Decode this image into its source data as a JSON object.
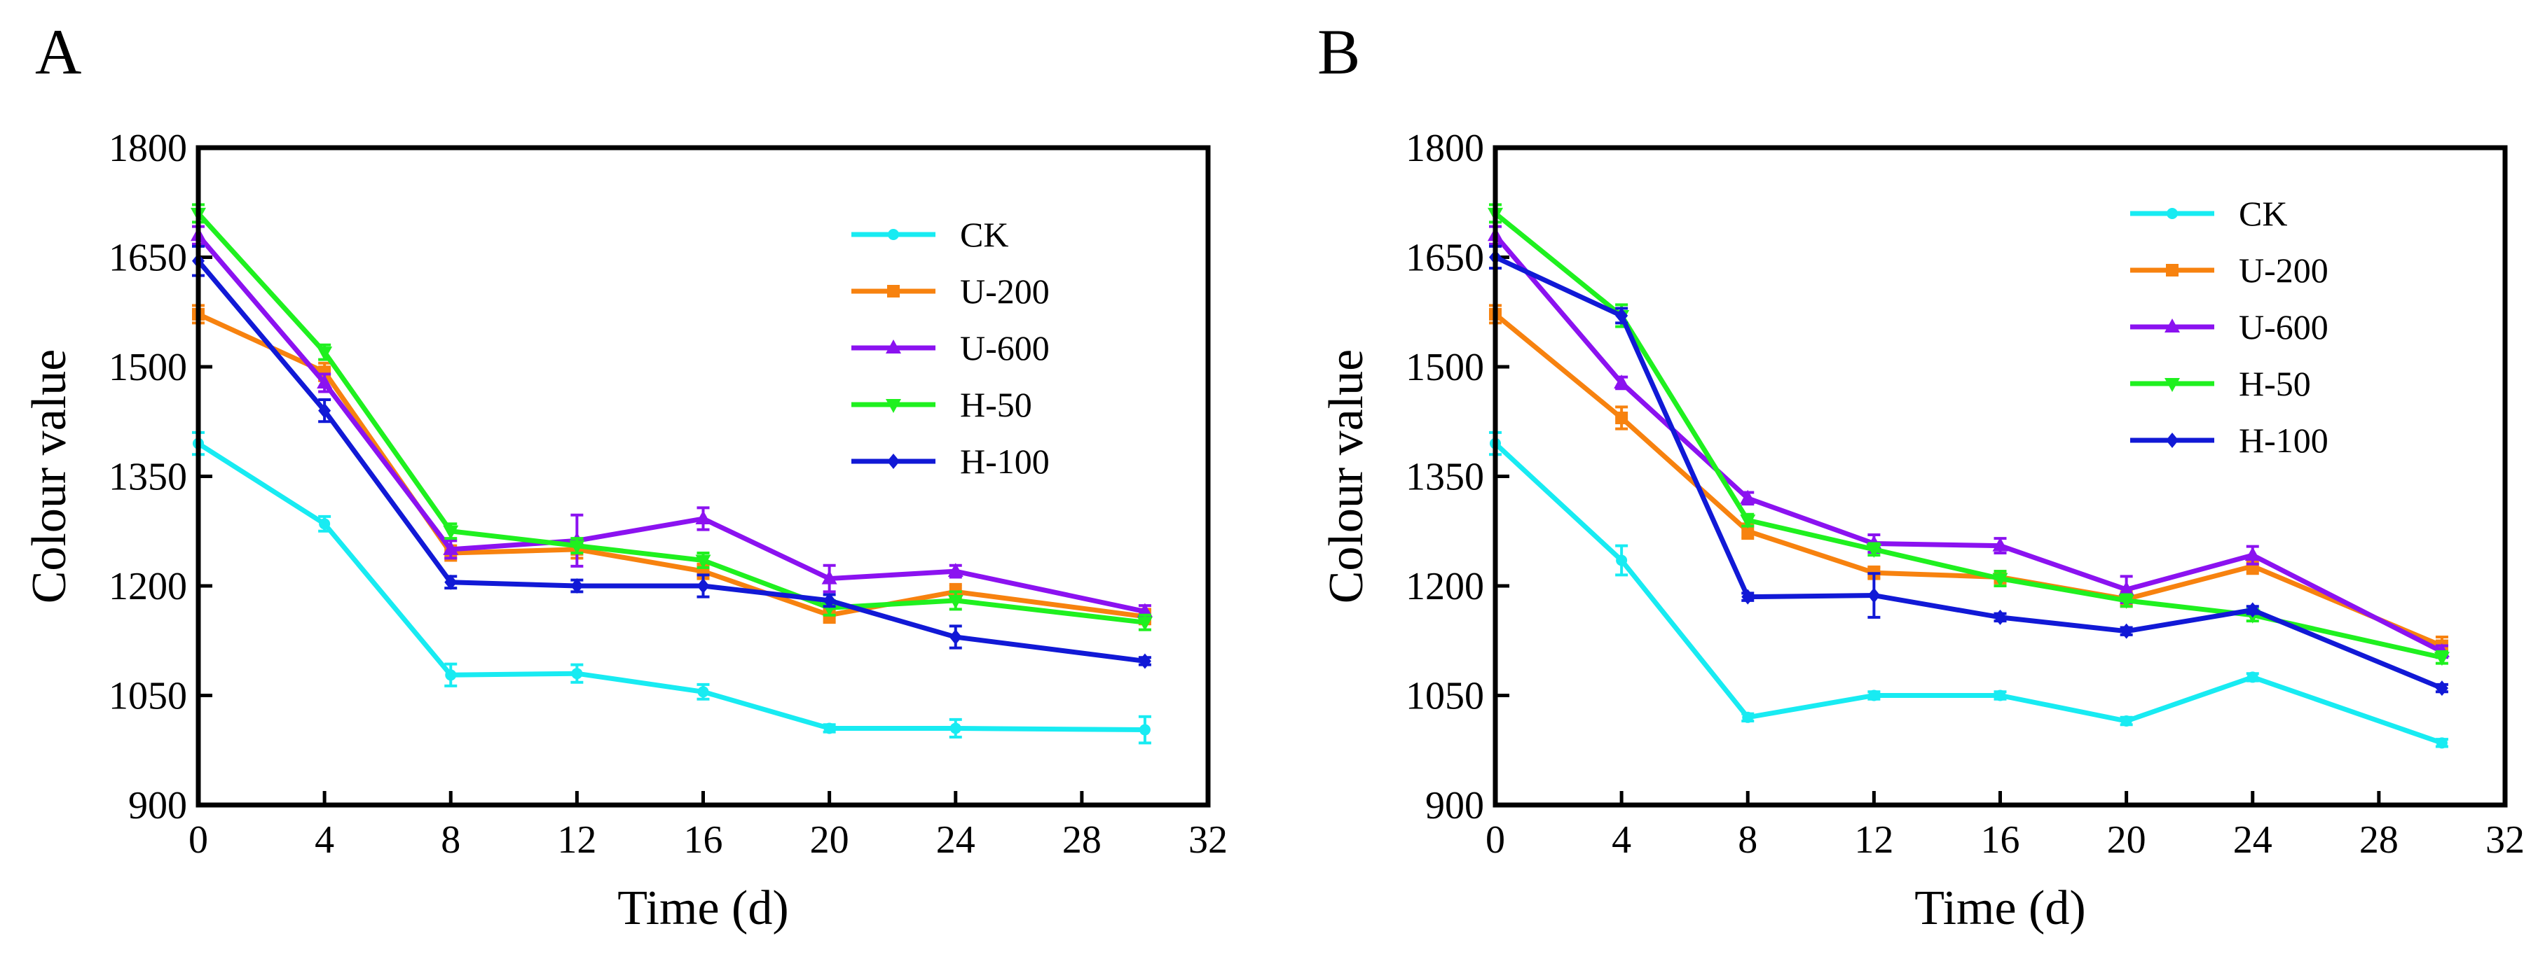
{
  "chart_data": [
    {
      "panel": "A",
      "type": "line",
      "xlabel": "Time (d)",
      "ylabel": "Colour value",
      "xlim": [
        0,
        32
      ],
      "ylim": [
        900,
        1800
      ],
      "xticks": [
        0,
        4,
        8,
        12,
        16,
        20,
        24,
        28,
        32
      ],
      "yticks": [
        900,
        1050,
        1200,
        1350,
        1500,
        1650,
        1800
      ],
      "legend_position": "top-right",
      "grid": false,
      "x": [
        0,
        4,
        8,
        12,
        16,
        20,
        24,
        30
      ],
      "series": [
        {
          "name": "CK",
          "color": "#18ebf2",
          "marker": "circle",
          "values": [
            1395,
            1285,
            1078,
            1080,
            1055,
            1005,
            1005,
            1003
          ],
          "errors": [
            15,
            10,
            15,
            12,
            10,
            5,
            12,
            18
          ]
        },
        {
          "name": "U-200",
          "color": "#f7820f",
          "marker": "square",
          "values": [
            1572,
            1493,
            1245,
            1250,
            1220,
            1160,
            1192,
            1158
          ],
          "errors": [
            12,
            12,
            10,
            12,
            10,
            10,
            10,
            10
          ]
        },
        {
          "name": "U-600",
          "color": "#8b12f0",
          "marker": "triangle-up",
          "values": [
            1680,
            1478,
            1250,
            1262,
            1292,
            1210,
            1220,
            1165
          ],
          "errors": [
            12,
            12,
            12,
            35,
            15,
            18,
            8,
            8
          ]
        },
        {
          "name": "H-50",
          "color": "#1ff01f",
          "marker": "triangle-down",
          "values": [
            1710,
            1520,
            1275,
            1255,
            1235,
            1170,
            1180,
            1150
          ],
          "errors": [
            12,
            10,
            10,
            10,
            10,
            10,
            12,
            10
          ]
        },
        {
          "name": "H-100",
          "color": "#1119d6",
          "marker": "diamond",
          "values": [
            1645,
            1440,
            1205,
            1200,
            1200,
            1180,
            1130,
            1097
          ],
          "errors": [
            20,
            15,
            8,
            8,
            15,
            8,
            15,
            5
          ]
        }
      ]
    },
    {
      "panel": "B",
      "type": "line",
      "xlabel": "Time (d)",
      "ylabel": "Colour value",
      "xlim": [
        0,
        32
      ],
      "ylim": [
        900,
        1800
      ],
      "xticks": [
        0,
        4,
        8,
        12,
        16,
        20,
        24,
        28,
        32
      ],
      "yticks": [
        900,
        1050,
        1200,
        1350,
        1500,
        1650,
        1800
      ],
      "legend_position": "top-right",
      "grid": false,
      "x": [
        0,
        4,
        8,
        12,
        16,
        20,
        24,
        30
      ],
      "series": [
        {
          "name": "CK",
          "color": "#18ebf2",
          "marker": "circle",
          "values": [
            1395,
            1235,
            1020,
            1050,
            1050,
            1015,
            1075,
            985
          ],
          "errors": [
            15,
            20,
            5,
            5,
            5,
            5,
            5,
            5
          ]
        },
        {
          "name": "U-200",
          "color": "#f7820f",
          "marker": "square",
          "values": [
            1572,
            1430,
            1275,
            1218,
            1212,
            1182,
            1227,
            1118
          ],
          "errors": [
            12,
            15,
            10,
            8,
            8,
            10,
            10,
            12
          ]
        },
        {
          "name": "U-600",
          "color": "#8b12f0",
          "marker": "triangle-up",
          "values": [
            1680,
            1478,
            1320,
            1258,
            1255,
            1195,
            1242,
            1110
          ],
          "errors": [
            12,
            8,
            8,
            12,
            10,
            18,
            12,
            8
          ]
        },
        {
          "name": "H-50",
          "color": "#1ff01f",
          "marker": "triangle-down",
          "values": [
            1710,
            1570,
            1290,
            1250,
            1210,
            1180,
            1160,
            1102
          ],
          "errors": [
            12,
            15,
            8,
            8,
            10,
            8,
            8,
            8
          ]
        },
        {
          "name": "H-100",
          "color": "#1119d6",
          "marker": "diamond",
          "values": [
            1650,
            1570,
            1185,
            1187,
            1157,
            1138,
            1167,
            1060
          ],
          "errors": [
            15,
            10,
            5,
            30,
            5,
            5,
            5,
            5
          ]
        }
      ]
    }
  ]
}
